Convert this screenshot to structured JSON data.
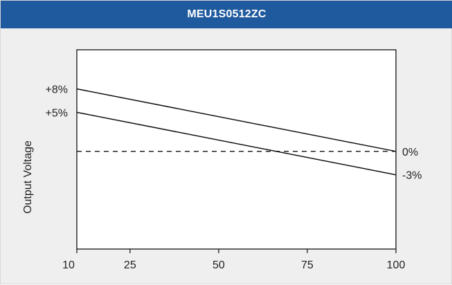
{
  "chart_data": {
    "type": "line",
    "title": "MEU1S0512ZC",
    "xlabel": "",
    "ylabel": "Output Voltage",
    "xlim": [
      10,
      100
    ],
    "ylim": [
      -12.5,
      13
    ],
    "x_ticks": [
      10,
      25,
      50,
      75,
      100
    ],
    "y_labels_left": [
      {
        "value": 8,
        "text": "+8%"
      },
      {
        "value": 5,
        "text": "+5%"
      }
    ],
    "y_labels_right": [
      {
        "value": 0,
        "text": "0%"
      },
      {
        "value": -3,
        "text": "-3%"
      }
    ],
    "series": [
      {
        "x": [
          10,
          100
        ],
        "y": [
          8,
          0
        ],
        "style": "solid"
      },
      {
        "x": [
          10,
          100
        ],
        "y": [
          5,
          -3
        ],
        "style": "solid"
      }
    ],
    "reference_line": {
      "y": 0,
      "style": "dashed"
    },
    "grid": false,
    "colors": {
      "title_bar": "#1f5a9e",
      "title_text": "#ffffff",
      "background": "#efefef",
      "plot_background": "#ffffff",
      "line": "#111111"
    }
  }
}
